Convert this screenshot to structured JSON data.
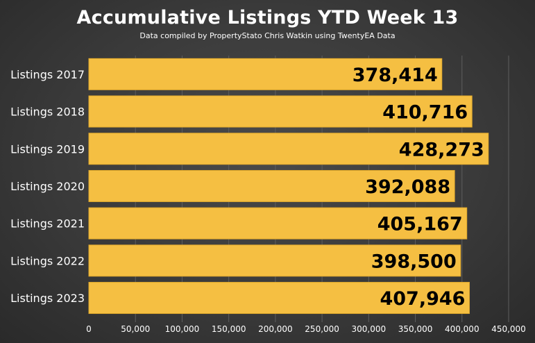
{
  "title": "Accumulative Listings YTD Week 13",
  "subtitle": "Data compiled by PropertyStato Chris Watkin using TwentyEA Data",
  "colors": {
    "bar": "#f5bf42",
    "bar_stroke": "#e0a92c",
    "text": "#ffffff",
    "grid": "#5e5e5e",
    "data_label": "#000000"
  },
  "chart_data": {
    "type": "bar",
    "orientation": "horizontal",
    "title": "Accumulative Listings YTD Week 13",
    "subtitle": "Data compiled by PropertyStato Chris Watkin using TwentyEA Data",
    "categories": [
      "Listings 2017",
      "Listings 2018",
      "Listings 2019",
      "Listings 2020",
      "Listings 2021",
      "Listings 2022",
      "Listings 2023"
    ],
    "values": [
      378414,
      410716,
      428273,
      392088,
      405167,
      398500,
      407946
    ],
    "data_labels": [
      "378,414",
      "410,716",
      "428,273",
      "392,088",
      "405,167",
      "398,500",
      "407,946"
    ],
    "xlim": [
      0,
      450000
    ],
    "xticks": [
      0,
      50000,
      100000,
      150000,
      200000,
      250000,
      300000,
      350000,
      400000,
      450000
    ],
    "xtick_labels": [
      "0",
      "50,000",
      "100,000",
      "150,000",
      "200,000",
      "250,000",
      "300,000",
      "350,000",
      "400,000",
      "450,000"
    ],
    "xlabel": "",
    "ylabel": "",
    "grid": "vertical",
    "legend": "none"
  }
}
